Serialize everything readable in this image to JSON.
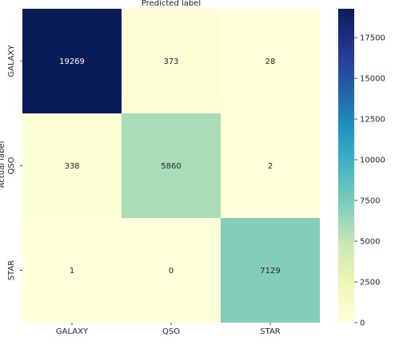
{
  "chart_data": {
    "type": "heatmap",
    "title": "Predicted label",
    "xlabel": "",
    "ylabel": "Actual label",
    "x_categories": [
      "GALAXY",
      "QSO",
      "STAR"
    ],
    "y_categories": [
      "GALAXY",
      "QSO",
      "STAR"
    ],
    "values": [
      [
        19269,
        373,
        28
      ],
      [
        338,
        5860,
        2
      ],
      [
        1,
        0,
        7129
      ]
    ],
    "colormap": "YlGnBu",
    "colorbar": {
      "range": [
        0,
        19269
      ],
      "ticks": [
        "0",
        "2500",
        "5000",
        "7500",
        "10000",
        "12500",
        "15000",
        "17500"
      ]
    },
    "grid": false
  }
}
